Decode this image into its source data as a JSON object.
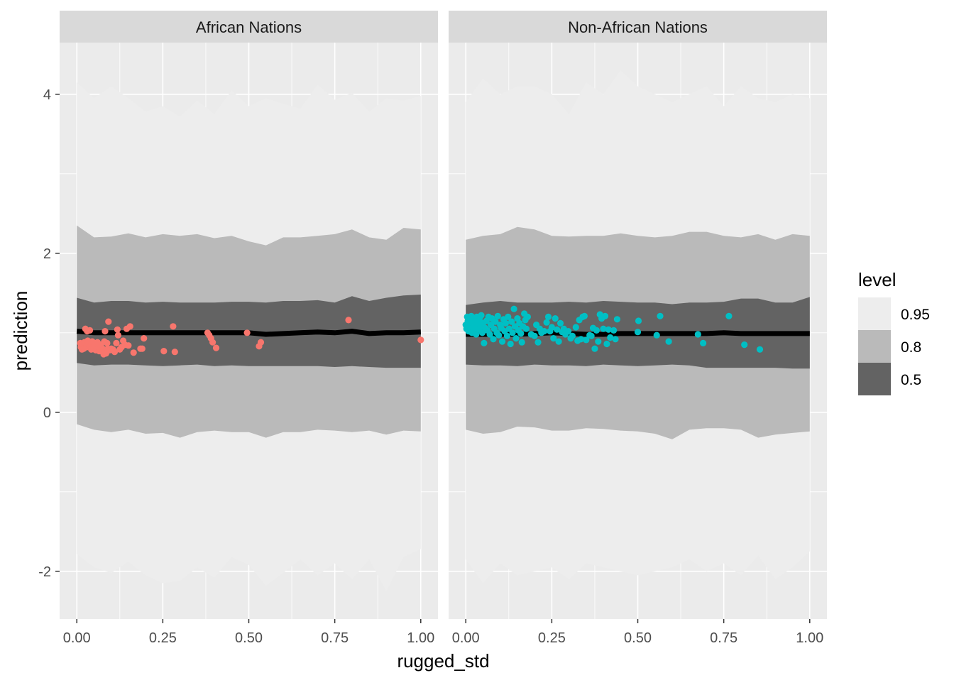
{
  "chart_data": {
    "type": "area",
    "xlabel": "rugged_std",
    "ylabel": "prediction",
    "xlim": [
      -0.05,
      1.05
    ],
    "ylim": [
      -2.6,
      4.65
    ],
    "x_ticks": [
      0,
      0.25,
      0.5,
      0.75,
      1.0
    ],
    "x_tick_labels": [
      "0.00",
      "0.25",
      "0.50",
      "0.75",
      "1.00"
    ],
    "y_ticks": [
      -2,
      0,
      2,
      4
    ],
    "y_tick_labels": [
      "-2",
      "0",
      "2",
      "4"
    ],
    "grid": true,
    "legend": {
      "title": "level",
      "placement": "right",
      "entries": [
        {
          "label": "0.95",
          "color": "#ededed"
        },
        {
          "label": "0.8",
          "color": "#bababa"
        },
        {
          "label": "0.5",
          "color": "#636363"
        }
      ]
    },
    "colors": {
      "panel_bg": "#ebebeb",
      "strip_bg": "#d9d9d9",
      "line": "#000000",
      "african_points": "#f8766d",
      "non_african_points": "#00bfc4"
    },
    "panels": [
      {
        "strip_label": "African Nations",
        "x": [
          0.0,
          0.05,
          0.1,
          0.15,
          0.2,
          0.25,
          0.3,
          0.35,
          0.4,
          0.45,
          0.5,
          0.55,
          0.6,
          0.65,
          0.7,
          0.75,
          0.8,
          0.85,
          0.9,
          0.95,
          1.0
        ],
        "band_95": {
          "upper": [
            4.15,
            3.95,
            4.1,
            3.95,
            3.78,
            3.85,
            3.72,
            3.92,
            3.75,
            4.05,
            3.85,
            3.95,
            3.88,
            3.82,
            4.12,
            3.93,
            4.02,
            3.78,
            3.95,
            3.92,
            3.98
          ],
          "lower": [
            -1.78,
            -1.95,
            -2.02,
            -1.88,
            -2.05,
            -2.15,
            -2.12,
            -1.95,
            -2.08,
            -1.82,
            -1.92,
            -2.18,
            -2.02,
            -1.85,
            -2.05,
            -1.9,
            -2.1,
            -1.85,
            -2.25,
            -1.82,
            -1.72
          ]
        },
        "band_80": {
          "upper": [
            2.35,
            2.2,
            2.21,
            2.25,
            2.2,
            2.24,
            2.22,
            2.24,
            2.19,
            2.22,
            2.15,
            2.1,
            2.2,
            2.2,
            2.22,
            2.24,
            2.3,
            2.2,
            2.17,
            2.32,
            2.3
          ],
          "lower": [
            -0.15,
            -0.22,
            -0.25,
            -0.22,
            -0.27,
            -0.26,
            -0.32,
            -0.25,
            -0.23,
            -0.25,
            -0.25,
            -0.32,
            -0.25,
            -0.25,
            -0.22,
            -0.23,
            -0.25,
            -0.23,
            -0.28,
            -0.23,
            -0.24
          ]
        },
        "band_50": {
          "upper": [
            1.44,
            1.38,
            1.4,
            1.4,
            1.38,
            1.39,
            1.38,
            1.38,
            1.38,
            1.39,
            1.39,
            1.38,
            1.4,
            1.4,
            1.41,
            1.38,
            1.46,
            1.4,
            1.44,
            1.47,
            1.48
          ],
          "lower": [
            0.62,
            0.59,
            0.6,
            0.6,
            0.59,
            0.58,
            0.59,
            0.6,
            0.58,
            0.59,
            0.58,
            0.58,
            0.58,
            0.58,
            0.58,
            0.57,
            0.58,
            0.57,
            0.56,
            0.56,
            0.56
          ]
        },
        "median": [
          1.02,
          1.0,
          1.0,
          1.0,
          1.0,
          1.0,
          1.0,
          1.0,
          1.0,
          1.0,
          1.0,
          0.98,
          0.99,
          1.0,
          1.01,
          1.0,
          1.02,
          0.99,
          1.0,
          1.0,
          1.01
        ],
        "points": [
          [
            0.01,
            0.87
          ],
          [
            0.012,
            0.82
          ],
          [
            0.015,
            0.79
          ],
          [
            0.018,
            0.85
          ],
          [
            0.02,
            0.8
          ],
          [
            0.022,
            0.88
          ],
          [
            0.025,
            1.05
          ],
          [
            0.028,
            0.82
          ],
          [
            0.03,
            1.02
          ],
          [
            0.032,
            0.9
          ],
          [
            0.035,
            0.85
          ],
          [
            0.038,
            1.03
          ],
          [
            0.04,
            0.84
          ],
          [
            0.042,
            0.79
          ],
          [
            0.045,
            0.89
          ],
          [
            0.048,
            0.82
          ],
          [
            0.05,
            0.84
          ],
          [
            0.055,
            0.78
          ],
          [
            0.06,
            0.88
          ],
          [
            0.063,
            0.82
          ],
          [
            0.065,
            0.77
          ],
          [
            0.068,
            0.8
          ],
          [
            0.07,
            0.85
          ],
          [
            0.072,
            0.78
          ],
          [
            0.075,
            0.8
          ],
          [
            0.078,
            0.73
          ],
          [
            0.08,
            0.89
          ],
          [
            0.082,
            1.02
          ],
          [
            0.085,
            0.74
          ],
          [
            0.088,
            0.87
          ],
          [
            0.09,
            0.8
          ],
          [
            0.092,
            1.14
          ],
          [
            0.095,
            0.78
          ],
          [
            0.1,
            0.8
          ],
          [
            0.105,
            0.79
          ],
          [
            0.11,
            0.76
          ],
          [
            0.115,
            0.87
          ],
          [
            0.118,
            1.04
          ],
          [
            0.12,
            0.97
          ],
          [
            0.125,
            0.79
          ],
          [
            0.13,
            0.82
          ],
          [
            0.135,
            0.9
          ],
          [
            0.14,
            0.85
          ],
          [
            0.145,
            1.05
          ],
          [
            0.15,
            0.84
          ],
          [
            0.155,
            1.08
          ],
          [
            0.165,
            0.75
          ],
          [
            0.185,
            0.8
          ],
          [
            0.19,
            0.8
          ],
          [
            0.195,
            0.93
          ],
          [
            0.253,
            0.77
          ],
          [
            0.28,
            1.08
          ],
          [
            0.285,
            0.76
          ],
          [
            0.38,
            1.0
          ],
          [
            0.385,
            0.97
          ],
          [
            0.39,
            0.93
          ],
          [
            0.395,
            0.88
          ],
          [
            0.405,
            0.81
          ],
          [
            0.495,
            1.0
          ],
          [
            0.53,
            0.83
          ],
          [
            0.535,
            0.88
          ],
          [
            0.79,
            1.16
          ],
          [
            1.0,
            0.91
          ]
        ]
      },
      {
        "strip_label": "Non-African Nations",
        "x": [
          0.0,
          0.05,
          0.1,
          0.15,
          0.2,
          0.25,
          0.3,
          0.35,
          0.4,
          0.45,
          0.5,
          0.55,
          0.6,
          0.65,
          0.7,
          0.75,
          0.8,
          0.85,
          0.9,
          0.95,
          1.0
        ],
        "band_95": {
          "upper": [
            3.9,
            4.2,
            4.0,
            4.1,
            4.1,
            4.0,
            3.75,
            4.15,
            4.0,
            4.3,
            4.1,
            4.0,
            3.9,
            4.0,
            4.1,
            3.85,
            4.1,
            3.95,
            3.9,
            4.0,
            3.95
          ],
          "lower": [
            -1.85,
            -2.15,
            -1.9,
            -2.05,
            -2.0,
            -1.95,
            -2.1,
            -1.9,
            -1.95,
            -2.0,
            -2.05,
            -2.0,
            -1.95,
            -1.85,
            -2.0,
            -1.9,
            -2.05,
            -1.8,
            -2.1,
            -1.95,
            -1.75
          ]
        },
        "band_80": {
          "upper": [
            2.17,
            2.22,
            2.24,
            2.33,
            2.3,
            2.22,
            2.21,
            2.22,
            2.22,
            2.25,
            2.22,
            2.2,
            2.22,
            2.27,
            2.27,
            2.22,
            2.2,
            2.24,
            2.17,
            2.24,
            2.22
          ],
          "lower": [
            -0.22,
            -0.27,
            -0.25,
            -0.18,
            -0.19,
            -0.23,
            -0.23,
            -0.2,
            -0.21,
            -0.23,
            -0.24,
            -0.27,
            -0.34,
            -0.22,
            -0.2,
            -0.2,
            -0.22,
            -0.32,
            -0.28,
            -0.26,
            -0.24
          ]
        },
        "band_50": {
          "upper": [
            1.35,
            1.38,
            1.4,
            1.38,
            1.38,
            1.38,
            1.39,
            1.38,
            1.4,
            1.39,
            1.38,
            1.38,
            1.36,
            1.38,
            1.38,
            1.39,
            1.43,
            1.43,
            1.38,
            1.38,
            1.45
          ],
          "lower": [
            0.6,
            0.59,
            0.59,
            0.58,
            0.6,
            0.59,
            0.59,
            0.58,
            0.6,
            0.59,
            0.58,
            0.59,
            0.6,
            0.59,
            0.56,
            0.56,
            0.56,
            0.56,
            0.56,
            0.55,
            0.55
          ]
        },
        "median": [
          0.98,
          0.98,
          0.98,
          0.98,
          0.99,
          1.0,
          0.99,
          0.98,
          0.98,
          0.99,
          0.99,
          0.99,
          0.99,
          0.99,
          0.99,
          1.0,
          0.99,
          0.99,
          0.99,
          0.99,
          0.99
        ],
        "points": [
          [
            0.0,
            1.1
          ],
          [
            0.002,
            1.05
          ],
          [
            0.004,
            1.2
          ],
          [
            0.006,
            1.15
          ],
          [
            0.008,
            1.02
          ],
          [
            0.01,
            1.12
          ],
          [
            0.012,
            1.18
          ],
          [
            0.014,
            1.08
          ],
          [
            0.016,
            1.21
          ],
          [
            0.018,
            1.0
          ],
          [
            0.02,
            1.12
          ],
          [
            0.022,
            1.05
          ],
          [
            0.025,
            1.16
          ],
          [
            0.028,
            1.1
          ],
          [
            0.03,
            0.98
          ],
          [
            0.032,
            1.2
          ],
          [
            0.035,
            1.13
          ],
          [
            0.038,
            1.04
          ],
          [
            0.04,
            1.18
          ],
          [
            0.043,
            1.08
          ],
          [
            0.045,
            1.22
          ],
          [
            0.048,
            1.0
          ],
          [
            0.05,
            1.12
          ],
          [
            0.053,
            0.87
          ],
          [
            0.056,
            1.06
          ],
          [
            0.06,
            1.15
          ],
          [
            0.063,
            1.03
          ],
          [
            0.066,
            1.2
          ],
          [
            0.07,
            0.98
          ],
          [
            0.073,
            1.1
          ],
          [
            0.076,
            1.18
          ],
          [
            0.08,
            0.92
          ],
          [
            0.083,
            1.05
          ],
          [
            0.086,
            1.14
          ],
          [
            0.09,
            1.0
          ],
          [
            0.093,
            1.21
          ],
          [
            0.096,
            0.97
          ],
          [
            0.1,
            1.1
          ],
          [
            0.103,
            1.06
          ],
          [
            0.106,
            0.89
          ],
          [
            0.11,
            1.17
          ],
          [
            0.113,
            1.02
          ],
          [
            0.116,
            1.12
          ],
          [
            0.12,
            0.96
          ],
          [
            0.123,
            1.2
          ],
          [
            0.126,
            1.05
          ],
          [
            0.13,
            0.86
          ],
          [
            0.133,
            1.14
          ],
          [
            0.136,
            1.0
          ],
          [
            0.14,
            1.3
          ],
          [
            0.143,
            1.08
          ],
          [
            0.146,
            0.93
          ],
          [
            0.15,
            1.18
          ],
          [
            0.153,
            1.03
          ],
          [
            0.156,
            1.12
          ],
          [
            0.16,
            0.99
          ],
          [
            0.163,
            0.88
          ],
          [
            0.166,
            1.08
          ],
          [
            0.17,
            1.24
          ],
          [
            0.173,
            1.16
          ],
          [
            0.176,
            1.05
          ],
          [
            0.18,
            1.2
          ],
          [
            0.19,
            0.98
          ],
          [
            0.2,
            0.96
          ],
          [
            0.205,
            1.1
          ],
          [
            0.21,
            0.88
          ],
          [
            0.215,
            1.05
          ],
          [
            0.22,
            1.0
          ],
          [
            0.228,
            1.02
          ],
          [
            0.235,
            1.13
          ],
          [
            0.24,
            1.2
          ],
          [
            0.245,
            1.02
          ],
          [
            0.25,
            1.07
          ],
          [
            0.255,
            0.93
          ],
          [
            0.26,
            1.18
          ],
          [
            0.265,
            1.04
          ],
          [
            0.27,
            0.89
          ],
          [
            0.275,
            1.12
          ],
          [
            0.28,
            1.01
          ],
          [
            0.285,
            1.05
          ],
          [
            0.29,
            0.98
          ],
          [
            0.298,
            1.02
          ],
          [
            0.305,
            0.93
          ],
          [
            0.31,
            0.96
          ],
          [
            0.32,
            1.07
          ],
          [
            0.325,
            0.9
          ],
          [
            0.33,
            1.16
          ],
          [
            0.335,
            0.92
          ],
          [
            0.34,
            1.2
          ],
          [
            0.345,
            1.21
          ],
          [
            0.35,
            0.91
          ],
          [
            0.36,
            0.97
          ],
          [
            0.365,
            0.96
          ],
          [
            0.37,
            1.06
          ],
          [
            0.375,
            0.8
          ],
          [
            0.38,
            1.03
          ],
          [
            0.385,
            0.89
          ],
          [
            0.39,
            1.23
          ],
          [
            0.395,
            1.18
          ],
          [
            0.4,
            1.05
          ],
          [
            0.405,
            1.21
          ],
          [
            0.41,
            0.86
          ],
          [
            0.415,
            1.04
          ],
          [
            0.42,
            0.94
          ],
          [
            0.43,
            1.03
          ],
          [
            0.435,
            0.92
          ],
          [
            0.44,
            1.17
          ],
          [
            0.5,
            1.01
          ],
          [
            0.502,
            1.15
          ],
          [
            0.555,
            0.97
          ],
          [
            0.565,
            1.21
          ],
          [
            0.59,
            0.89
          ],
          [
            0.675,
            0.98
          ],
          [
            0.69,
            0.87
          ],
          [
            0.765,
            1.21
          ],
          [
            0.81,
            0.85
          ],
          [
            0.855,
            0.79
          ]
        ]
      }
    ]
  }
}
